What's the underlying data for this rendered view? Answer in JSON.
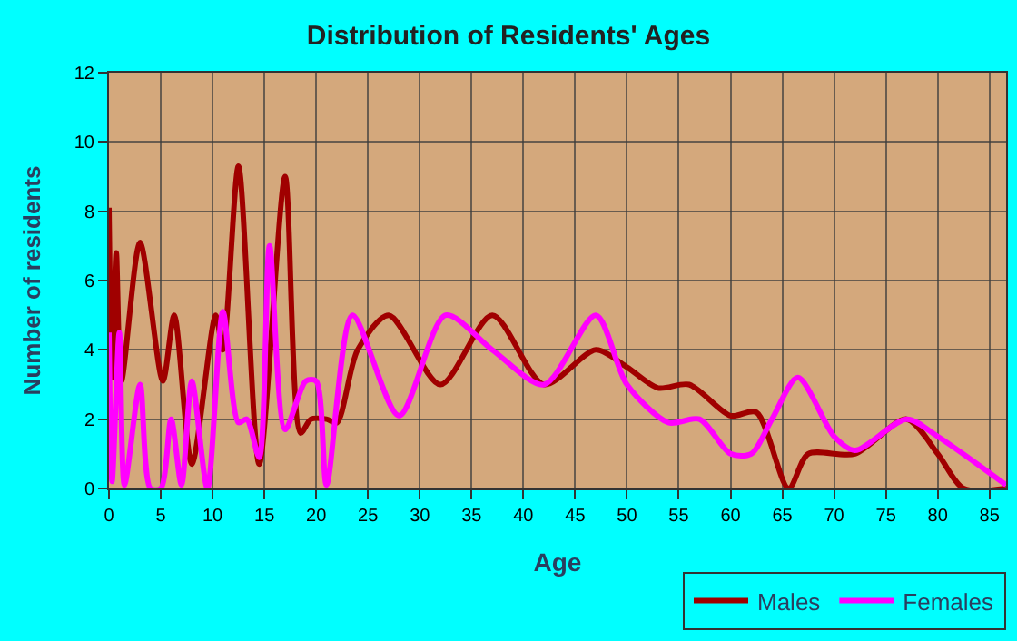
{
  "chart_data": {
    "type": "line",
    "title": "Distribution of Residents' Ages",
    "xlabel": "Age",
    "ylabel": "Number of residents",
    "xlim": [
      0,
      86.6
    ],
    "xticks": [
      0,
      5,
      10,
      15,
      20,
      25,
      30,
      35,
      40,
      45,
      50,
      55,
      60,
      65,
      70,
      75,
      80,
      85
    ],
    "ylim": [
      0,
      12
    ],
    "yticks": [
      0,
      2,
      4,
      6,
      8,
      10,
      12
    ],
    "grid": true,
    "legend": "bottom right",
    "marker": "none",
    "line_style": "solid",
    "series": [
      {
        "name": "Males",
        "color": "#a00000",
        "x": [
          0,
          0.3,
          0.7,
          1.2,
          3,
          5.2,
          6.3,
          8,
          10.3,
          11,
          12.5,
          14.5,
          17,
          18.5,
          19.5,
          21,
          22,
          24,
          27,
          32,
          37,
          42,
          47,
          50,
          53,
          56,
          60,
          62.5,
          65.6,
          67.5,
          72,
          77,
          80,
          82.5,
          86.6
        ],
        "values": [
          8.1,
          3.2,
          6.8,
          3.1,
          7.1,
          3.1,
          5.0,
          0.7,
          5.0,
          4.0,
          9.3,
          0.7,
          9.0,
          1.6,
          2.0,
          2.0,
          1.9,
          4.0,
          5.0,
          3.0,
          5.0,
          3.0,
          4.0,
          3.5,
          2.9,
          3.0,
          2.1,
          2.2,
          0,
          1.0,
          1.0,
          2.0,
          1.0,
          0,
          0
        ]
      },
      {
        "name": "Females",
        "color": "#ff00ff",
        "x": [
          0,
          0.3,
          1,
          1.5,
          3,
          4,
          5,
          6,
          7,
          8,
          9.5,
          11,
          12.5,
          13.3,
          14.5,
          15.5,
          17,
          19,
          20,
          21,
          23.5,
          28,
          32.5,
          37,
          42,
          47,
          50,
          54,
          57,
          60,
          62,
          64,
          66.5,
          70,
          72,
          77,
          80,
          86.6
        ],
        "values": [
          4.5,
          0.2,
          4.5,
          0.1,
          3.0,
          0,
          0,
          2.0,
          0.1,
          3.1,
          0,
          5.1,
          1.9,
          2.0,
          0.9,
          7.0,
          1.7,
          3.1,
          3.1,
          0.1,
          5.0,
          2.1,
          5.0,
          4.0,
          3.0,
          5.0,
          3.0,
          1.9,
          2.0,
          1.0,
          1.0,
          2.0,
          3.2,
          1.5,
          1.1,
          2.0,
          1.5,
          0.1
        ]
      }
    ]
  }
}
